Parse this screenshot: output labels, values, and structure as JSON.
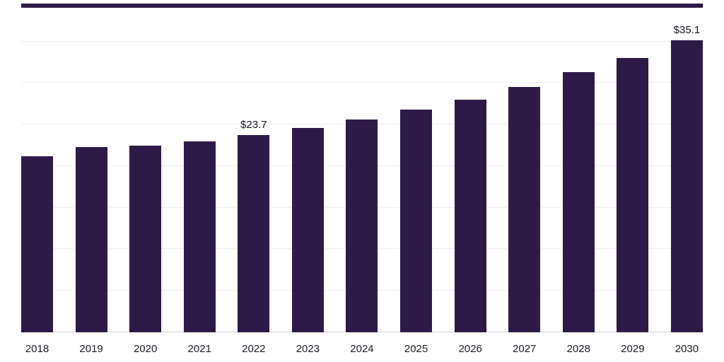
{
  "chart_data": {
    "type": "bar",
    "categories": [
      "2018",
      "2019",
      "2020",
      "2021",
      "2022",
      "2023",
      "2024",
      "2025",
      "2026",
      "2027",
      "2028",
      "2029",
      "2030"
    ],
    "values": [
      21.2,
      22.3,
      22.5,
      23.0,
      23.7,
      24.6,
      25.6,
      26.8,
      28.0,
      29.5,
      31.3,
      33.0,
      35.1
    ],
    "annotations": [
      {
        "category": "2022",
        "text": "$23.7"
      },
      {
        "category": "2030",
        "text": "$35.1"
      }
    ],
    "title": "",
    "xlabel": "",
    "ylabel": "",
    "ylim": [
      0,
      39.3
    ],
    "grid": true,
    "gridline_interval": 5,
    "legend": "none",
    "bar_color": "#2e1a47",
    "gridline_color": "#efeff4",
    "axis_line_color": "#d4d4da",
    "top_border_color": "#2e1a47"
  }
}
